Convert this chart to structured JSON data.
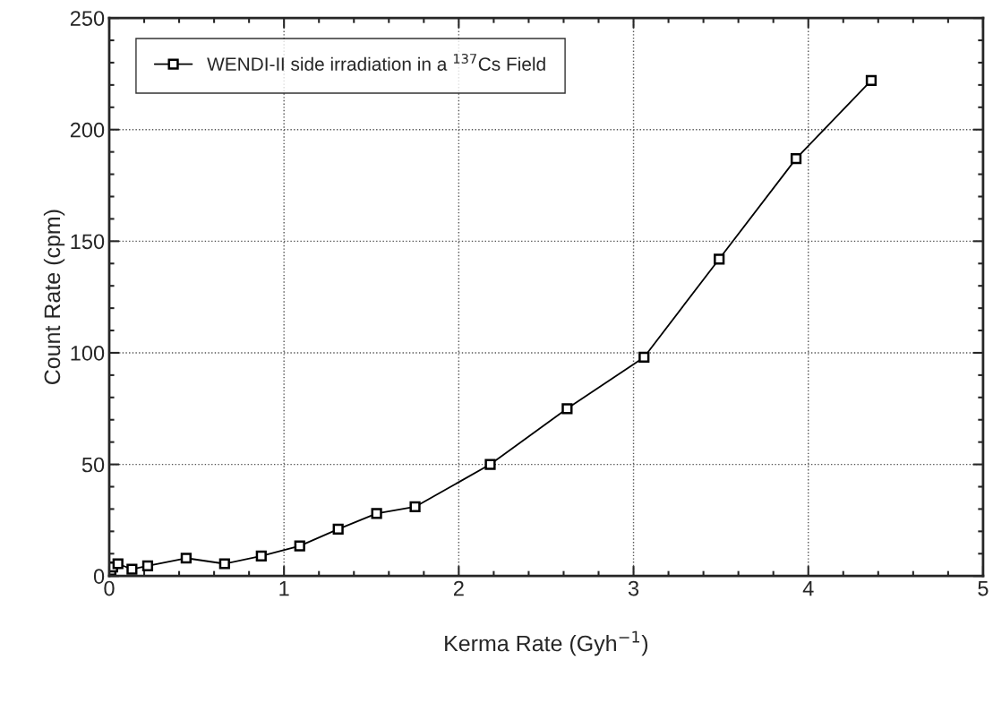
{
  "chart_data": {
    "type": "line",
    "xlabel": "Kerma Rate (Gyh$^{−1}$)",
    "ylabel": "Count Rate (cpm)",
    "series": [
      {
        "name": "WENDI-II side irradiation in a $^{137}$Cs Field",
        "color": "#000000",
        "marker": "square",
        "line_style": "solid",
        "x": [
          0,
          0.01,
          0.02,
          0.05,
          0.13,
          0.22,
          0.44,
          0.66,
          0.87,
          1.09,
          1.31,
          1.53,
          1.75,
          2.18,
          2.62,
          3.06,
          3.49,
          3.93,
          4.36
        ],
        "values": [
          3,
          2.5,
          4,
          5.5,
          3,
          4.5,
          8,
          5.5,
          9,
          13.5,
          21,
          28,
          31,
          50,
          75,
          98,
          142,
          187,
          222
        ]
      }
    ],
    "xlim": [
      0,
      5
    ],
    "xticks": [
      0,
      1,
      2,
      3,
      4,
      5
    ],
    "ylim": [
      0,
      250
    ],
    "yticks": [
      0,
      50,
      100,
      150,
      200,
      250
    ],
    "grid": true,
    "legend": "top left"
  }
}
